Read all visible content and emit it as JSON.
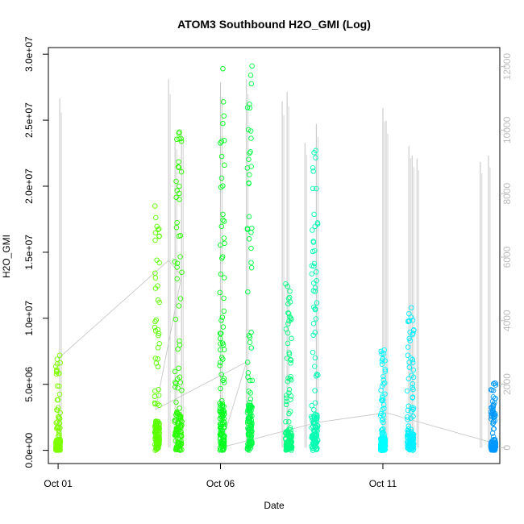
{
  "chart_data": {
    "type": "scatter",
    "title": "ATOM3 Southbound H2O_GMI (Log)",
    "xlabel": "Date",
    "ylabel": "H2O_GMI",
    "x_ticks": [
      {
        "day": 1,
        "label": "Oct 01"
      },
      {
        "day": 6,
        "label": "Oct 06"
      },
      {
        "day": 11,
        "label": "Oct 11"
      }
    ],
    "xlim_days": [
      0.7,
      14.6
    ],
    "ylim": [
      -1000000,
      30500000
    ],
    "y_ticks": [
      {
        "value": 0,
        "label": "0.0e+00"
      },
      {
        "value": 5000000,
        "label": "5.0e+06"
      },
      {
        "value": 10000000,
        "label": "1.0e+07"
      },
      {
        "value": 15000000,
        "label": "1.5e+07"
      },
      {
        "value": 20000000,
        "label": "2.0e+07"
      },
      {
        "value": 25000000,
        "label": "2.5e+07"
      },
      {
        "value": 30000000,
        "label": "3.0e+07"
      }
    ],
    "y2lim": [
      -500,
      12600
    ],
    "y2_ticks": [
      {
        "value": 0,
        "label": "0"
      },
      {
        "value": 2000,
        "label": "2000"
      },
      {
        "value": 4000,
        "label": "4000"
      },
      {
        "value": 6000,
        "label": "6000"
      },
      {
        "value": 8000,
        "label": "8000"
      },
      {
        "value": 10000,
        "label": "10000"
      },
      {
        "value": 12000,
        "label": "12000"
      }
    ],
    "secondary_line_color": "#c8c8c8",
    "flights": [
      {
        "day": 1.0,
        "width": 0.06,
        "top": 7200000,
        "color": "#7fff00"
      },
      {
        "day": 4.05,
        "width": 0.08,
        "top": 18500000,
        "color": "#5cff00"
      },
      {
        "day": 4.7,
        "width": 0.22,
        "top": 24100000,
        "color": "#2bff00"
      },
      {
        "day": 6.05,
        "width": 0.12,
        "top": 28900000,
        "color": "#00ff1e"
      },
      {
        "day": 6.9,
        "width": 0.12,
        "top": 29100000,
        "color": "#00ff45"
      },
      {
        "day": 8.1,
        "width": 0.2,
        "top": 12600000,
        "color": "#00ff80"
      },
      {
        "day": 8.9,
        "width": 0.2,
        "top": 22700000,
        "color": "#00ffb4"
      },
      {
        "day": 11.0,
        "width": 0.12,
        "top": 7600000,
        "color": "#00ffff"
      },
      {
        "day": 11.85,
        "width": 0.2,
        "top": 10800000,
        "color": "#00f0ff"
      },
      {
        "day": 14.4,
        "width": 0.14,
        "top": 5100000,
        "color": "#0099ff"
      }
    ],
    "altitude_spikes": [
      {
        "day": 1.05,
        "top": 11000
      },
      {
        "day": 4.4,
        "top": 11600
      },
      {
        "day": 4.6,
        "top": 9800
      },
      {
        "day": 4.8,
        "top": 10000
      },
      {
        "day": 6.0,
        "top": 11500
      },
      {
        "day": 6.8,
        "top": 11600
      },
      {
        "day": 7.9,
        "top": 10900
      },
      {
        "day": 8.05,
        "top": 11200
      },
      {
        "day": 8.6,
        "top": 9600
      },
      {
        "day": 8.95,
        "top": 10200
      },
      {
        "day": 11.0,
        "top": 10700
      },
      {
        "day": 11.1,
        "top": 10300
      },
      {
        "day": 11.8,
        "top": 9500
      },
      {
        "day": 11.9,
        "top": 9200
      },
      {
        "day": 12.05,
        "top": 9100
      },
      {
        "day": 14.0,
        "top": 9000
      },
      {
        "day": 14.25,
        "top": 9200
      }
    ],
    "transit_path": [
      {
        "day": 1.0,
        "alt": 2800
      },
      {
        "day": 4.4,
        "alt": 5900
      },
      {
        "day": 4.8,
        "alt": 5400
      },
      {
        "day": 4.0,
        "alt": 1200
      },
      {
        "day": 6.8,
        "alt": 2700
      },
      {
        "day": 6.0,
        "alt": 0
      },
      {
        "day": 9.0,
        "alt": 800
      },
      {
        "day": 11.1,
        "alt": 1100
      },
      {
        "day": 14.4,
        "alt": 150
      }
    ]
  }
}
